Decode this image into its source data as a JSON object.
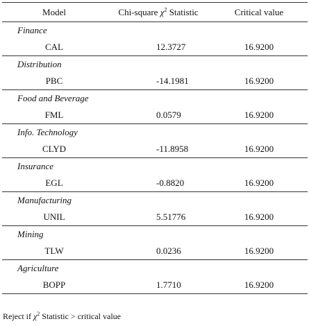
{
  "header": {
    "model": "Model",
    "stat_prefix": "Chi-square ",
    "stat_symbol": "χ",
    "stat_power": "2",
    "stat_suffix": " Statistic",
    "critical": "Critical value"
  },
  "groups": [
    {
      "sector": "Finance",
      "model": "CAL",
      "stat": "12.3727",
      "critical": "16.9200"
    },
    {
      "sector": "Distribution",
      "model": "PBC",
      "stat": "-14.1981",
      "critical": "16.9200"
    },
    {
      "sector": "Food and Beverage",
      "model": "FML",
      "stat": "0.0579",
      "critical": "16.9200"
    },
    {
      "sector": "Info. Technology",
      "model": "CLYD",
      "stat": "-11.8958",
      "critical": "16.9200"
    },
    {
      "sector": "Insurance",
      "model": "EGL",
      "stat": "-0.8820",
      "critical": "16.9200"
    },
    {
      "sector": "Manufacturing",
      "model": "UNIL",
      "stat": "5.51776",
      "critical": "16.9200"
    },
    {
      "sector": "Mining",
      "model": "TLW",
      "stat": "0.0236",
      "critical": "16.9200"
    },
    {
      "sector": "Agriculture",
      "model": "BOPP",
      "stat": "1.7710",
      "critical": "16.9200"
    }
  ],
  "note": {
    "prefix": "Reject if ",
    "symbol": "χ",
    "power": "2",
    "suffix": " Statistic > critical value"
  }
}
